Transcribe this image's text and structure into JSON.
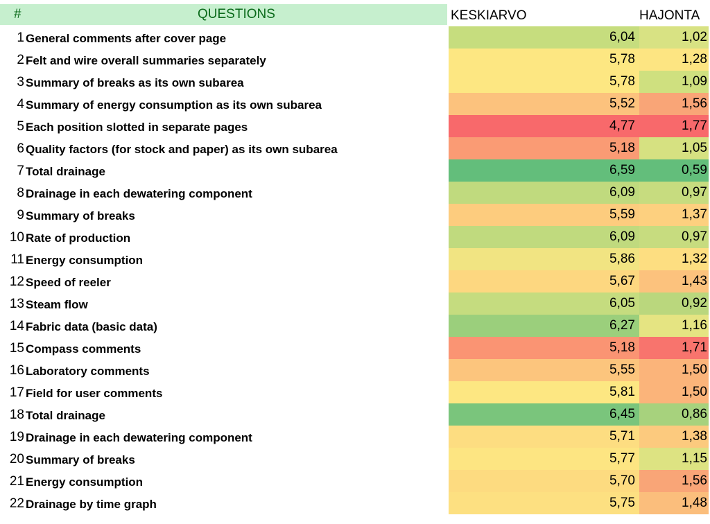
{
  "header": {
    "hash": "#",
    "questions": "QUESTIONS",
    "mean": "KESKIARVO",
    "std": "HAJONTA"
  },
  "colors": {
    "header_fill": "#c6efce",
    "header_text": "#0a6a1a"
  },
  "rows": [
    {
      "num": "1",
      "question": "General comments after cover page",
      "mean": "6,04",
      "std": "1,02",
      "mean_color": "#c6dd7e",
      "std_color": "#d8e283"
    },
    {
      "num": "2",
      "question": "Felt and wire overall summaries separately",
      "mean": "5,78",
      "std": "1,28",
      "mean_color": "#fde782",
      "std_color": "#fde582"
    },
    {
      "num": "3",
      "question": "Summary of breaks as its own subarea",
      "mean": "5,78",
      "std": "1,09",
      "mean_color": "#fde782",
      "std_color": "#cfe07f"
    },
    {
      "num": "4",
      "question": "Summary of energy consumption as its own subarea",
      "mean": "5,52",
      "std": "1,56",
      "mean_color": "#fcc27d",
      "std_color": "#f9a577"
    },
    {
      "num": "5",
      "question": "Each position slotted in separate pages",
      "mean": "4,77",
      "std": "1,77",
      "mean_color": "#f8696b",
      "std_color": "#f8696b"
    },
    {
      "num": "6",
      "question": "Quality factors (for stock and paper) as its own subarea",
      "mean": "5,18",
      "std": "1,05",
      "mean_color": "#fa9b74",
      "std_color": "#d6e181"
    },
    {
      "num": "7",
      "question": "Total drainage",
      "mean": "6,59",
      "std": "0,59",
      "mean_color": "#63be7b",
      "std_color": "#63be7b"
    },
    {
      "num": "8",
      "question": "Drainage in each dewatering component",
      "mean": "6,09",
      "std": "0,97",
      "mean_color": "#c0da7e",
      "std_color": "#c7dc7f"
    },
    {
      "num": "9",
      "question": "Summary of breaks",
      "mean": "5,59",
      "std": "1,37",
      "mean_color": "#fdcc7e",
      "std_color": "#fdd07f"
    },
    {
      "num": "10",
      "question": "Rate of production",
      "mean": "6,09",
      "std": "0,97",
      "mean_color": "#c0da7e",
      "std_color": "#c7dc7f"
    },
    {
      "num": "11",
      "question": "Energy consumption",
      "mean": "5,86",
      "std": "1,32",
      "mean_color": "#f1e482",
      "std_color": "#fdde81"
    },
    {
      "num": "12",
      "question": "Speed of reeler",
      "mean": "5,67",
      "std": "1,43",
      "mean_color": "#fdd780",
      "std_color": "#fcc27d"
    },
    {
      "num": "13",
      "question": "Steam flow",
      "mean": "6,05",
      "std": "0,92",
      "mean_color": "#c5dc7f",
      "std_color": "#bad77d"
    },
    {
      "num": "14",
      "question": "Fabric data (basic data)",
      "mean": "6,27",
      "std": "1,16",
      "mean_color": "#9bcf7c",
      "std_color": "#e5e482"
    },
    {
      "num": "15",
      "question": "Compass comments",
      "mean": "5,18",
      "std": "1,71",
      "mean_color": "#fa9473",
      "std_color": "#f8746d"
    },
    {
      "num": "16",
      "question": "Laboratory comments",
      "mean": "5,55",
      "std": "1,50",
      "mean_color": "#fcc57d",
      "std_color": "#fbb47a"
    },
    {
      "num": "17",
      "question": "Field for user comments",
      "mean": "5,81",
      "std": "1,50",
      "mean_color": "#fde782",
      "std_color": "#fbb47a"
    },
    {
      "num": "18",
      "question": "Total drainage",
      "mean": "6,45",
      "std": "0,86",
      "mean_color": "#7ac57c",
      "std_color": "#a7d27d"
    },
    {
      "num": "19",
      "question": "Drainage in each dewatering component",
      "mean": "5,71",
      "std": "1,38",
      "mean_color": "#fddd81",
      "std_color": "#fcca7e"
    },
    {
      "num": "20",
      "question": "Summary of breaks",
      "mean": "5,77",
      "std": "1,15",
      "mean_color": "#fde582",
      "std_color": "#dde382"
    },
    {
      "num": "21",
      "question": "Energy consumption",
      "mean": "5,70",
      "std": "1,56",
      "mean_color": "#fddb80",
      "std_color": "#f9a577"
    },
    {
      "num": "22",
      "question": "Drainage by time graph",
      "mean": "5,75",
      "std": "1,48",
      "mean_color": "#fde081",
      "std_color": "#fbbe7c"
    }
  ]
}
